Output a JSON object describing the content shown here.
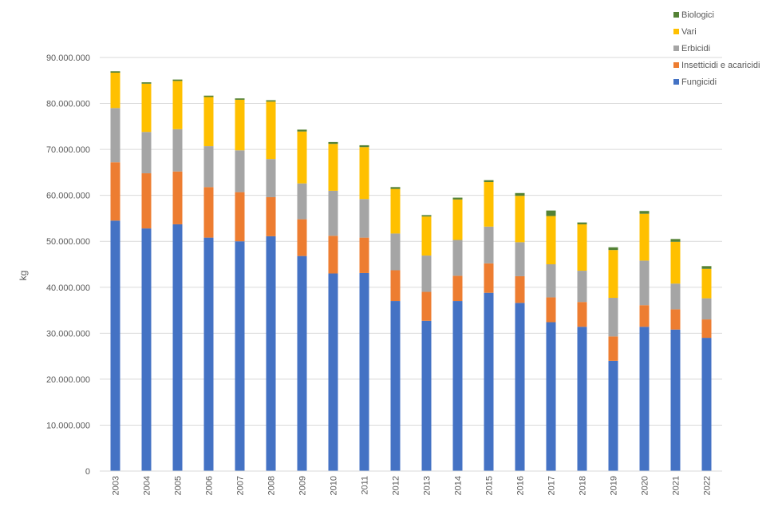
{
  "chart_data": {
    "type": "bar",
    "stacked": true,
    "title": "",
    "xlabel": "",
    "ylabel": "kg",
    "ylim": [
      0,
      90000000
    ],
    "yticks": [
      0,
      10000000,
      20000000,
      30000000,
      40000000,
      50000000,
      60000000,
      70000000,
      80000000,
      90000000
    ],
    "ytick_labels": [
      "0",
      "10.000.000",
      "20.000.000",
      "30.000.000",
      "40.000.000",
      "50.000.000",
      "60.000.000",
      "70.000.000",
      "80.000.000",
      "90.000.000"
    ],
    "grid": true,
    "legend_position": "top-right",
    "categories": [
      "2003",
      "2004",
      "2005",
      "2006",
      "2007",
      "2008",
      "2009",
      "2010",
      "2011",
      "2012",
      "2013",
      "2014",
      "2015",
      "2016",
      "2017",
      "2018",
      "2019",
      "2020",
      "2021",
      "2022"
    ],
    "series": [
      {
        "name": "Fungicidi",
        "color": "#4472C4",
        "values": [
          54500000,
          52800000,
          53700000,
          50800000,
          50000000,
          51100000,
          46800000,
          43000000,
          43100000,
          37000000,
          32700000,
          37000000,
          38800000,
          36600000,
          32400000,
          31400000,
          24000000,
          31400000,
          30800000,
          29000000
        ]
      },
      {
        "name": "Insetticidi e acaricidi",
        "color": "#ED7D31",
        "values": [
          12700000,
          12000000,
          11500000,
          11000000,
          10700000,
          8500000,
          8000000,
          8200000,
          7700000,
          6700000,
          6300000,
          5500000,
          6400000,
          5800000,
          5400000,
          5400000,
          5300000,
          4700000,
          4400000,
          4000000
        ]
      },
      {
        "name": "Erbicidi",
        "color": "#A5A5A5",
        "values": [
          11800000,
          9000000,
          9200000,
          8900000,
          9100000,
          8300000,
          7800000,
          9800000,
          8400000,
          8000000,
          7900000,
          7800000,
          8000000,
          7400000,
          7200000,
          6800000,
          8400000,
          9700000,
          5600000,
          4600000
        ]
      },
      {
        "name": "Vari",
        "color": "#FFC000",
        "values": [
          7700000,
          10500000,
          10500000,
          10700000,
          11000000,
          12500000,
          11300000,
          10200000,
          11300000,
          9700000,
          8500000,
          8800000,
          9700000,
          10100000,
          10500000,
          10100000,
          10400000,
          10200000,
          9100000,
          6400000
        ]
      },
      {
        "name": "Biologici",
        "color": "#548235",
        "values": [
          300000,
          300000,
          300000,
          300000,
          300000,
          300000,
          400000,
          400000,
          400000,
          400000,
          300000,
          400000,
          400000,
          600000,
          1200000,
          400000,
          600000,
          600000,
          600000,
          600000
        ]
      }
    ]
  }
}
